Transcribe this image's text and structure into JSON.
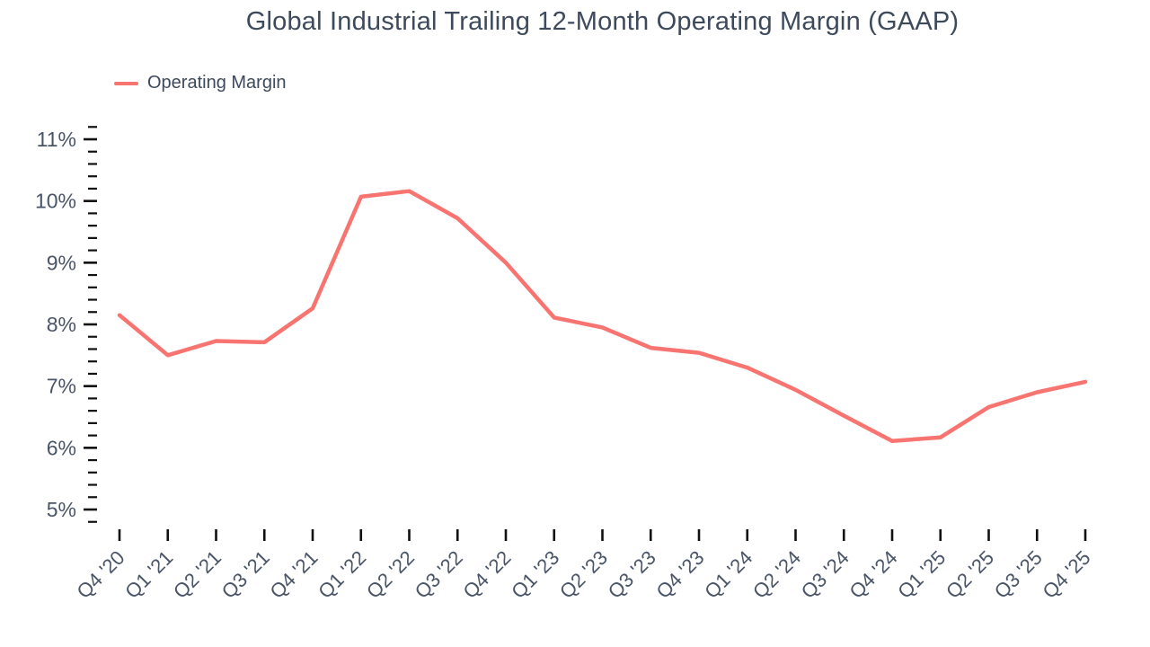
{
  "chart_data": {
    "type": "line",
    "title": "Global Industrial Trailing 12-Month Operating Margin (GAAP)",
    "xlabel": "",
    "ylabel": "",
    "grid": false,
    "legend_position": "top-left",
    "legend": [
      {
        "name": "Operating Margin",
        "color": "#f87470"
      }
    ],
    "categories": [
      "Q4 '20",
      "Q1 '21",
      "Q2 '21",
      "Q3 '21",
      "Q4 '21",
      "Q1 '22",
      "Q2 '22",
      "Q3 '22",
      "Q4 '22",
      "Q1 '23",
      "Q2 '23",
      "Q3 '23",
      "Q4 '23",
      "Q1 '24",
      "Q2 '24",
      "Q3 '24",
      "Q4 '24",
      "Q1 '25",
      "Q2 '25",
      "Q3 '25",
      "Q4 '25"
    ],
    "series": [
      {
        "name": "Operating Margin",
        "values": [
          8.15,
          7.5,
          7.73,
          7.71,
          8.26,
          10.07,
          10.16,
          9.72,
          9.0,
          8.11,
          7.95,
          7.62,
          7.54,
          7.3,
          6.94,
          6.52,
          6.11,
          6.17,
          6.66,
          6.9,
          7.07
        ]
      }
    ],
    "y_axis": {
      "min": 5,
      "max": 11,
      "major_step": 1,
      "minor_step": 0.2,
      "minor_min": 4.8,
      "minor_max": 11.2,
      "tick_labels": [
        "5%",
        "6%",
        "7%",
        "8%",
        "9%",
        "10%",
        "11%"
      ],
      "label_suffix": "%"
    }
  },
  "style": {
    "line_color": "#f87470",
    "axis_text_color": "#4a5568",
    "title_color": "#3d4a5c",
    "tick_color": "#111111",
    "background": "#ffffff"
  }
}
